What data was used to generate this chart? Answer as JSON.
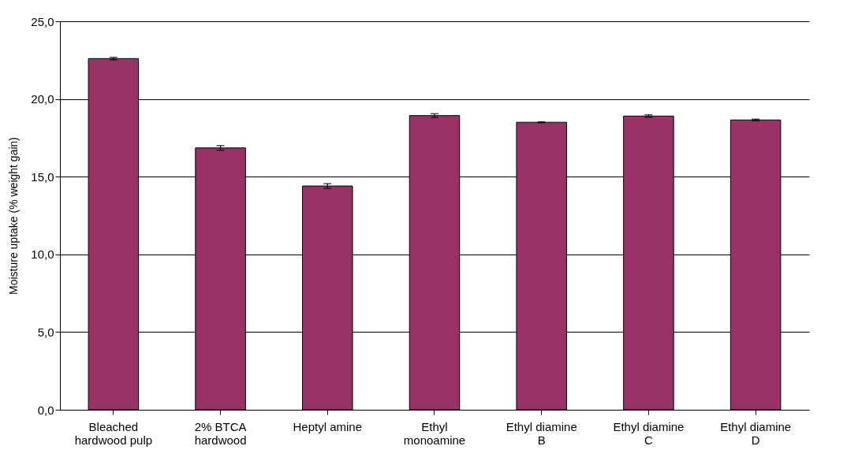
{
  "chart_data": {
    "type": "bar",
    "ylabel": "Moisture uptake (% weight gain)",
    "categories": [
      "Bleached hardwood pulp",
      "2% BTCA hardwood",
      "Heptyl amine",
      "Ethyl monoamine",
      "Ethyl diamine B",
      "Ethyl diamine C",
      "Ethyl diamine D"
    ],
    "values": [
      22.6,
      16.85,
      14.4,
      18.93,
      18.5,
      18.9,
      18.65
    ],
    "errors": [
      0.08,
      0.15,
      0.15,
      0.12,
      0.03,
      0.08,
      0.05
    ],
    "color": "#993366",
    "ylim": [
      0,
      25
    ],
    "yticks": [
      {
        "value": 0,
        "label": "0,0"
      },
      {
        "value": 5,
        "label": "5,0"
      },
      {
        "value": 10,
        "label": "10,0"
      },
      {
        "value": 15,
        "label": "15,0"
      },
      {
        "value": 20,
        "label": "20,0"
      },
      {
        "value": 25,
        "label": "25,0"
      }
    ],
    "grid": "y"
  }
}
